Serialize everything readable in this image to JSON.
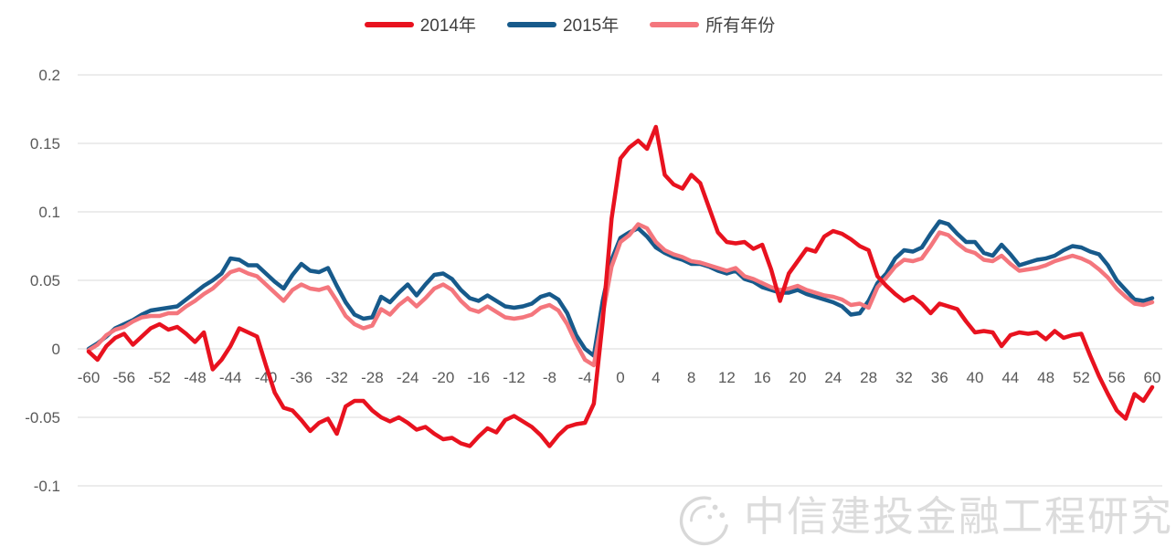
{
  "legend": {
    "items": [
      {
        "label": "2014年",
        "color": "#e8121f"
      },
      {
        "label": "2015年",
        "color": "#175a8b"
      },
      {
        "label": "所有年份",
        "color": "#f4767d"
      }
    ]
  },
  "watermark": {
    "text": "中信建投金融工程研究"
  },
  "colors": {
    "grid": "#d9d9d9",
    "tick_text": "#595959",
    "background": "#ffffff",
    "series_2014": "#e8121f",
    "series_2015": "#175a8b",
    "series_all_years": "#f4767d"
  },
  "chart_data": {
    "type": "line",
    "title": "",
    "xlabel": "",
    "ylabel": "",
    "xlim": [
      -60,
      60
    ],
    "ylim": [
      -0.1,
      0.2
    ],
    "grid": "horizontal",
    "legend_position": "top-center",
    "x_ticks": [
      -60,
      -56,
      -52,
      -48,
      -44,
      -40,
      -36,
      -32,
      -28,
      -24,
      -20,
      -16,
      -12,
      -8,
      -4,
      0,
      4,
      8,
      12,
      16,
      20,
      24,
      28,
      32,
      36,
      40,
      44,
      48,
      52,
      56,
      60
    ],
    "y_ticks": [
      0.2,
      0.15,
      0.1,
      0.05,
      0,
      -0.05,
      -0.1
    ],
    "y_tick_labels": [
      "0.2",
      "0.15",
      "0.1",
      "0.05",
      "0",
      "-0.05",
      "-0.1"
    ],
    "x": [
      -60,
      -59,
      -58,
      -57,
      -56,
      -55,
      -54,
      -53,
      -52,
      -51,
      -50,
      -49,
      -48,
      -47,
      -46,
      -45,
      -44,
      -43,
      -42,
      -41,
      -40,
      -39,
      -38,
      -37,
      -36,
      -35,
      -34,
      -33,
      -32,
      -31,
      -30,
      -29,
      -28,
      -27,
      -26,
      -25,
      -24,
      -23,
      -22,
      -21,
      -20,
      -19,
      -18,
      -17,
      -16,
      -15,
      -14,
      -13,
      -12,
      -11,
      -10,
      -9,
      -8,
      -7,
      -6,
      -5,
      -4,
      -3,
      -2,
      -1,
      0,
      1,
      2,
      3,
      4,
      5,
      6,
      7,
      8,
      9,
      10,
      11,
      12,
      13,
      14,
      15,
      16,
      17,
      18,
      19,
      20,
      21,
      22,
      23,
      24,
      25,
      26,
      27,
      28,
      29,
      30,
      31,
      32,
      33,
      34,
      35,
      36,
      37,
      38,
      39,
      40,
      41,
      42,
      43,
      44,
      45,
      46,
      47,
      48,
      49,
      50,
      51,
      52,
      53,
      54,
      55,
      56,
      57,
      58,
      59,
      60
    ],
    "series": [
      {
        "name": "2014年",
        "color": "#e8121f",
        "values": [
          -0.002,
          -0.008,
          0.002,
          0.008,
          0.011,
          0.003,
          0.009,
          0.015,
          0.018,
          0.014,
          0.016,
          0.011,
          0.005,
          0.012,
          -0.015,
          -0.008,
          0.002,
          0.015,
          0.012,
          0.009,
          -0.012,
          -0.032,
          -0.043,
          -0.045,
          -0.052,
          -0.06,
          -0.054,
          -0.051,
          -0.062,
          -0.042,
          -0.038,
          -0.038,
          -0.045,
          -0.05,
          -0.053,
          -0.05,
          -0.054,
          -0.059,
          -0.057,
          -0.062,
          -0.066,
          -0.065,
          -0.069,
          -0.071,
          -0.064,
          -0.058,
          -0.061,
          -0.052,
          -0.049,
          -0.053,
          -0.057,
          -0.063,
          -0.071,
          -0.063,
          -0.057,
          -0.055,
          -0.054,
          -0.04,
          0.02,
          0.095,
          0.139,
          0.147,
          0.152,
          0.146,
          0.162,
          0.127,
          0.12,
          0.117,
          0.127,
          0.121,
          0.103,
          0.085,
          0.078,
          0.077,
          0.078,
          0.073,
          0.076,
          0.058,
          0.035,
          0.055,
          0.064,
          0.073,
          0.071,
          0.082,
          0.086,
          0.084,
          0.08,
          0.075,
          0.072,
          0.053,
          0.046,
          0.04,
          0.035,
          0.038,
          0.033,
          0.026,
          0.033,
          0.031,
          0.029,
          0.02,
          0.012,
          0.013,
          0.012,
          0.002,
          0.01,
          0.012,
          0.011,
          0.012,
          0.007,
          0.013,
          0.008,
          0.01,
          0.011,
          -0.005,
          -0.02,
          -0.033,
          -0.045,
          -0.051,
          -0.033,
          -0.038,
          -0.028
        ]
      },
      {
        "name": "2015年",
        "color": "#175a8b",
        "values": [
          0.0,
          0.004,
          0.009,
          0.015,
          0.018,
          0.021,
          0.025,
          0.028,
          0.029,
          0.03,
          0.031,
          0.036,
          0.041,
          0.046,
          0.05,
          0.055,
          0.066,
          0.065,
          0.061,
          0.061,
          0.055,
          0.049,
          0.044,
          0.054,
          0.062,
          0.057,
          0.056,
          0.059,
          0.046,
          0.034,
          0.025,
          0.022,
          0.023,
          0.038,
          0.034,
          0.041,
          0.047,
          0.039,
          0.047,
          0.054,
          0.055,
          0.051,
          0.043,
          0.037,
          0.035,
          0.039,
          0.035,
          0.031,
          0.03,
          0.031,
          0.033,
          0.038,
          0.04,
          0.036,
          0.026,
          0.01,
          0.0,
          -0.005,
          0.035,
          0.065,
          0.081,
          0.085,
          0.088,
          0.082,
          0.074,
          0.07,
          0.067,
          0.065,
          0.062,
          0.062,
          0.06,
          0.057,
          0.055,
          0.057,
          0.051,
          0.049,
          0.045,
          0.043,
          0.041,
          0.041,
          0.043,
          0.04,
          0.038,
          0.036,
          0.034,
          0.031,
          0.025,
          0.026,
          0.035,
          0.048,
          0.055,
          0.066,
          0.072,
          0.071,
          0.074,
          0.084,
          0.093,
          0.091,
          0.084,
          0.078,
          0.078,
          0.07,
          0.068,
          0.076,
          0.069,
          0.061,
          0.063,
          0.065,
          0.066,
          0.068,
          0.072,
          0.075,
          0.074,
          0.071,
          0.069,
          0.061,
          0.05,
          0.043,
          0.036,
          0.035,
          0.037
        ]
      },
      {
        "name": "所有年份",
        "color": "#f4767d",
        "values": [
          -0.001,
          0.003,
          0.01,
          0.014,
          0.016,
          0.02,
          0.023,
          0.024,
          0.024,
          0.026,
          0.026,
          0.031,
          0.035,
          0.04,
          0.044,
          0.05,
          0.056,
          0.058,
          0.055,
          0.053,
          0.047,
          0.041,
          0.035,
          0.043,
          0.047,
          0.044,
          0.043,
          0.045,
          0.035,
          0.024,
          0.018,
          0.015,
          0.017,
          0.029,
          0.025,
          0.032,
          0.037,
          0.031,
          0.037,
          0.044,
          0.047,
          0.043,
          0.035,
          0.029,
          0.027,
          0.031,
          0.027,
          0.023,
          0.022,
          0.023,
          0.025,
          0.03,
          0.032,
          0.028,
          0.018,
          0.004,
          -0.008,
          -0.012,
          0.025,
          0.06,
          0.078,
          0.083,
          0.091,
          0.088,
          0.078,
          0.072,
          0.069,
          0.067,
          0.064,
          0.063,
          0.061,
          0.059,
          0.057,
          0.059,
          0.053,
          0.051,
          0.048,
          0.045,
          0.043,
          0.044,
          0.046,
          0.043,
          0.041,
          0.039,
          0.038,
          0.036,
          0.032,
          0.033,
          0.03,
          0.045,
          0.052,
          0.06,
          0.065,
          0.064,
          0.066,
          0.075,
          0.085,
          0.083,
          0.077,
          0.072,
          0.07,
          0.065,
          0.064,
          0.068,
          0.062,
          0.057,
          0.058,
          0.059,
          0.061,
          0.064,
          0.066,
          0.068,
          0.066,
          0.063,
          0.058,
          0.052,
          0.044,
          0.038,
          0.033,
          0.032,
          0.034
        ]
      }
    ]
  }
}
